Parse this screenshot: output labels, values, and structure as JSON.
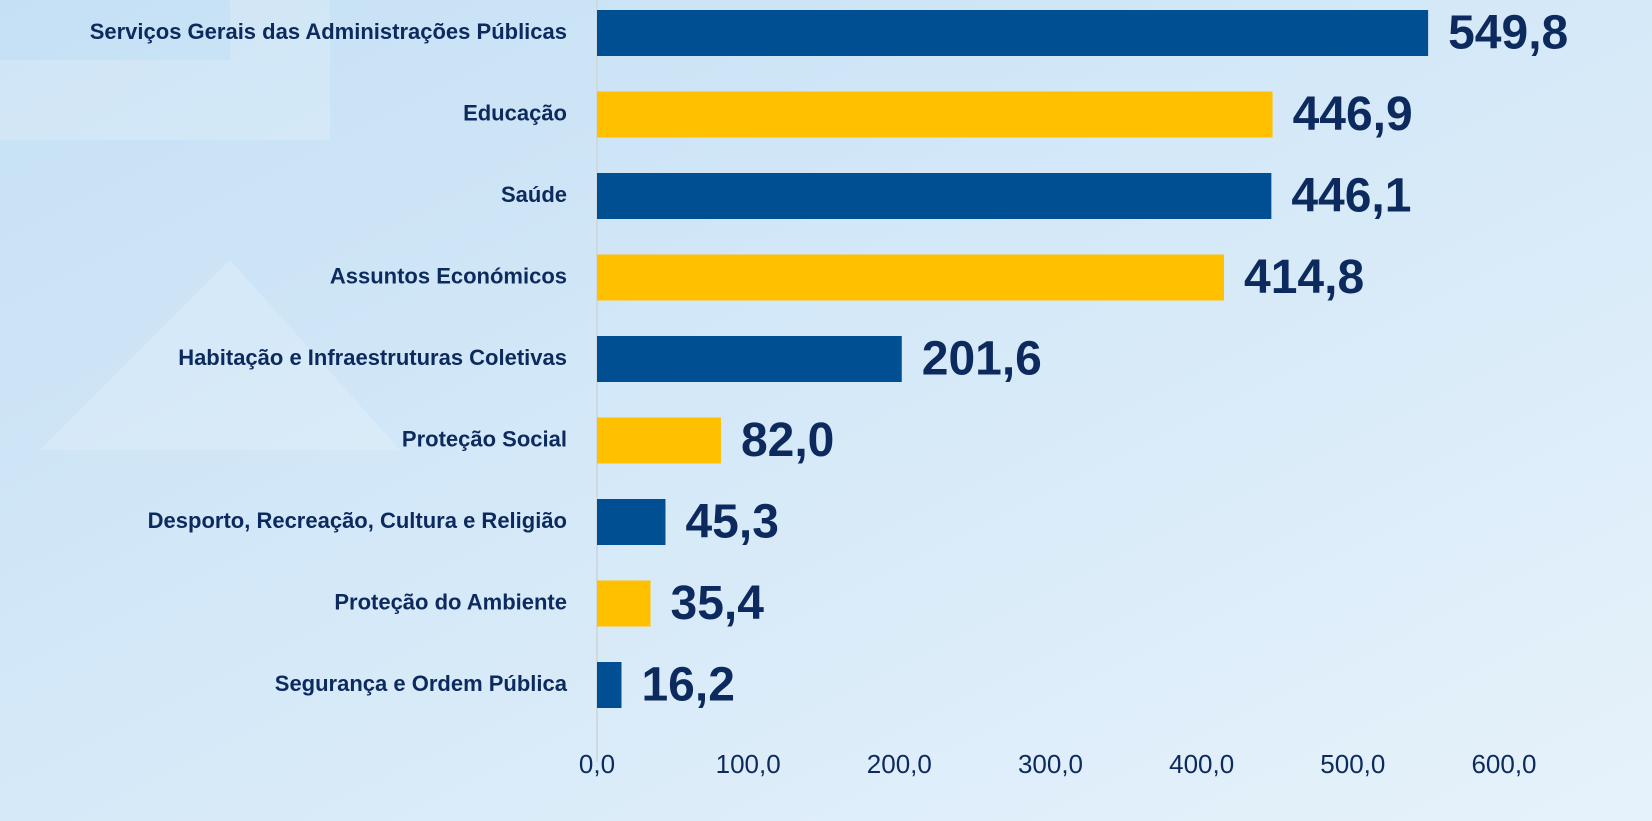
{
  "chart_data": {
    "type": "bar",
    "orientation": "horizontal",
    "categories": [
      "Serviços Gerais das Administrações Públicas",
      "Educação",
      "Saúde",
      "Assuntos Económicos",
      "Habitação e Infraestruturas Coletivas",
      "Proteção Social",
      "Desporto, Recreação, Cultura e Religião",
      "Proteção do Ambiente",
      "Segurança e Ordem Pública"
    ],
    "values": [
      549.8,
      446.9,
      446.1,
      414.8,
      201.6,
      82.0,
      45.3,
      35.4,
      16.2
    ],
    "value_labels": [
      "549,8",
      "446,9",
      "446,1",
      "414,8",
      "201,6",
      "82,0",
      "45,3",
      "35,4",
      "16,2"
    ],
    "colors": [
      "#004f93",
      "#ffc000",
      "#004f93",
      "#ffc000",
      "#004f93",
      "#ffc000",
      "#004f93",
      "#ffc000",
      "#004f93"
    ],
    "xlim": [
      0,
      600
    ],
    "xticks": [
      {
        "value": 0,
        "label": "0,0"
      },
      {
        "value": 100,
        "label": "100,0"
      },
      {
        "value": 200,
        "label": "200,0"
      },
      {
        "value": 300,
        "label": "300,0"
      },
      {
        "value": 400,
        "label": "400,0"
      },
      {
        "value": 500,
        "label": "500,0"
      },
      {
        "value": 600,
        "label": "600,0"
      }
    ],
    "grid": false
  }
}
